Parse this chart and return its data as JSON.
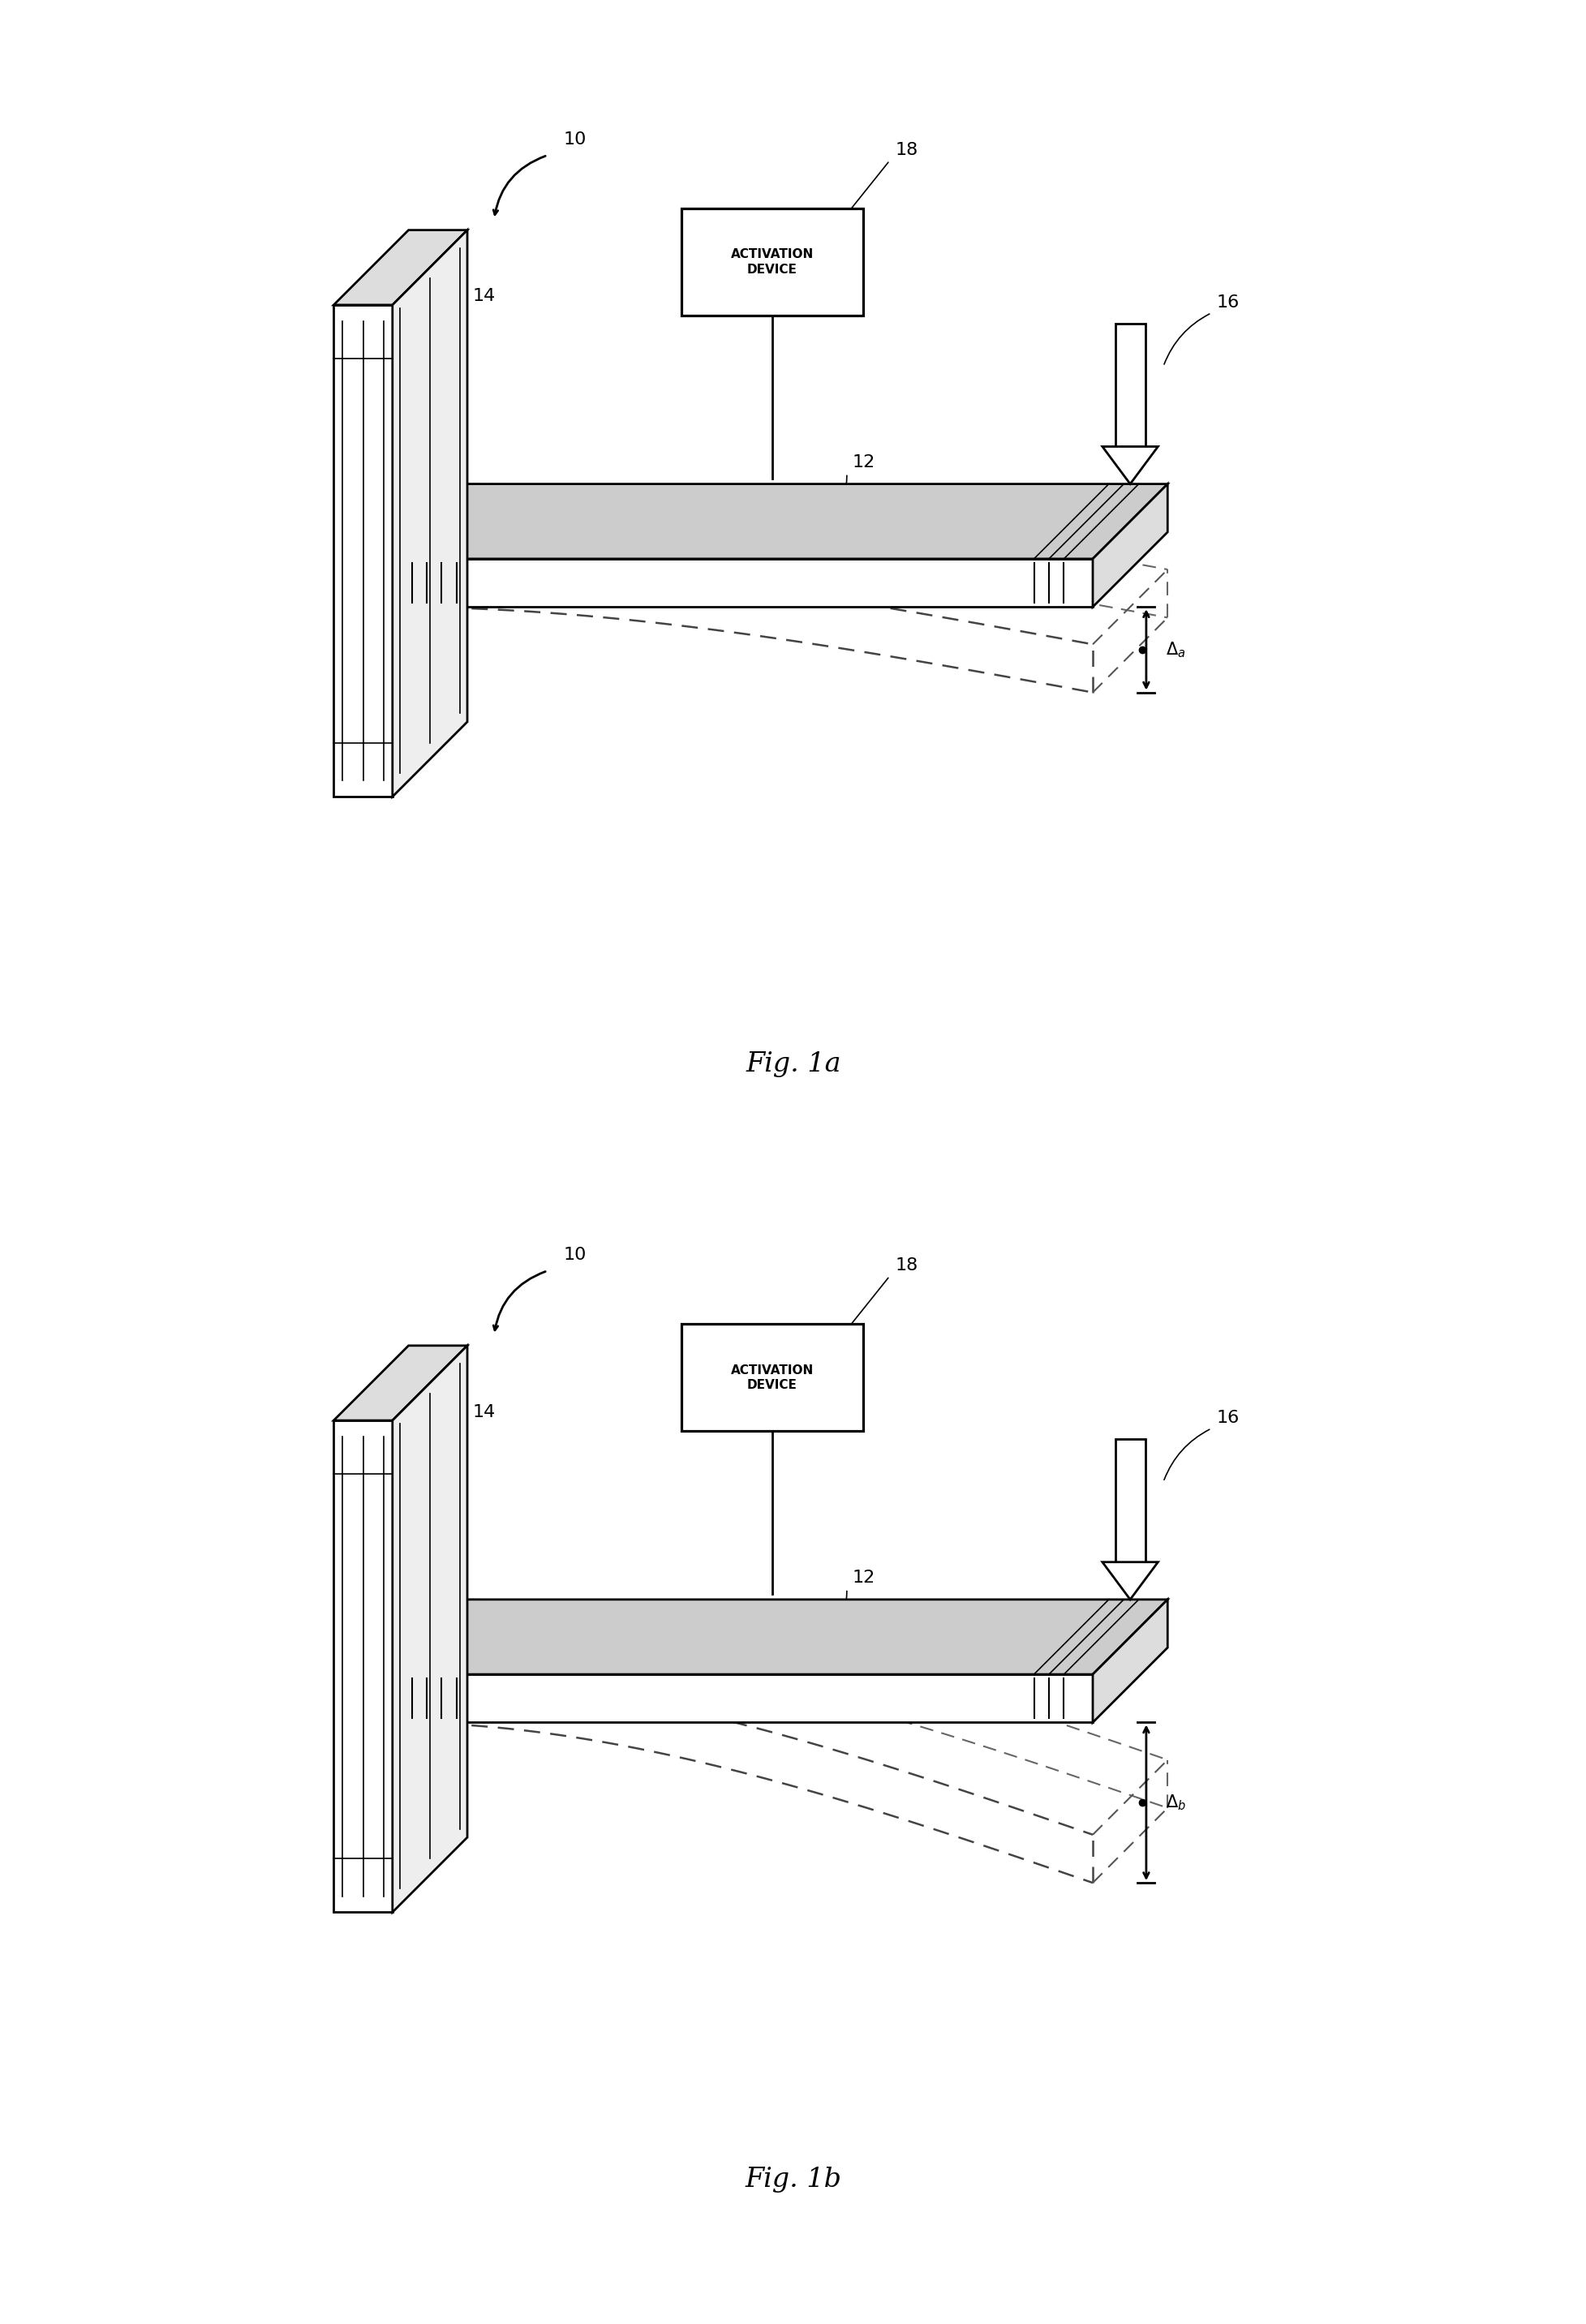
{
  "bg_color": "#ffffff",
  "lc": "#000000",
  "lw": 2.0,
  "lw_thin": 1.2,
  "fig_width": 19.56,
  "fig_height": 28.65,
  "fig1a_label": "Fig. 1a",
  "fig1b_label": "Fig. 1b",
  "activation_text": "ACTIVATION\nDEVICE",
  "labels": [
    "10",
    "12",
    "14",
    "16",
    "18"
  ]
}
